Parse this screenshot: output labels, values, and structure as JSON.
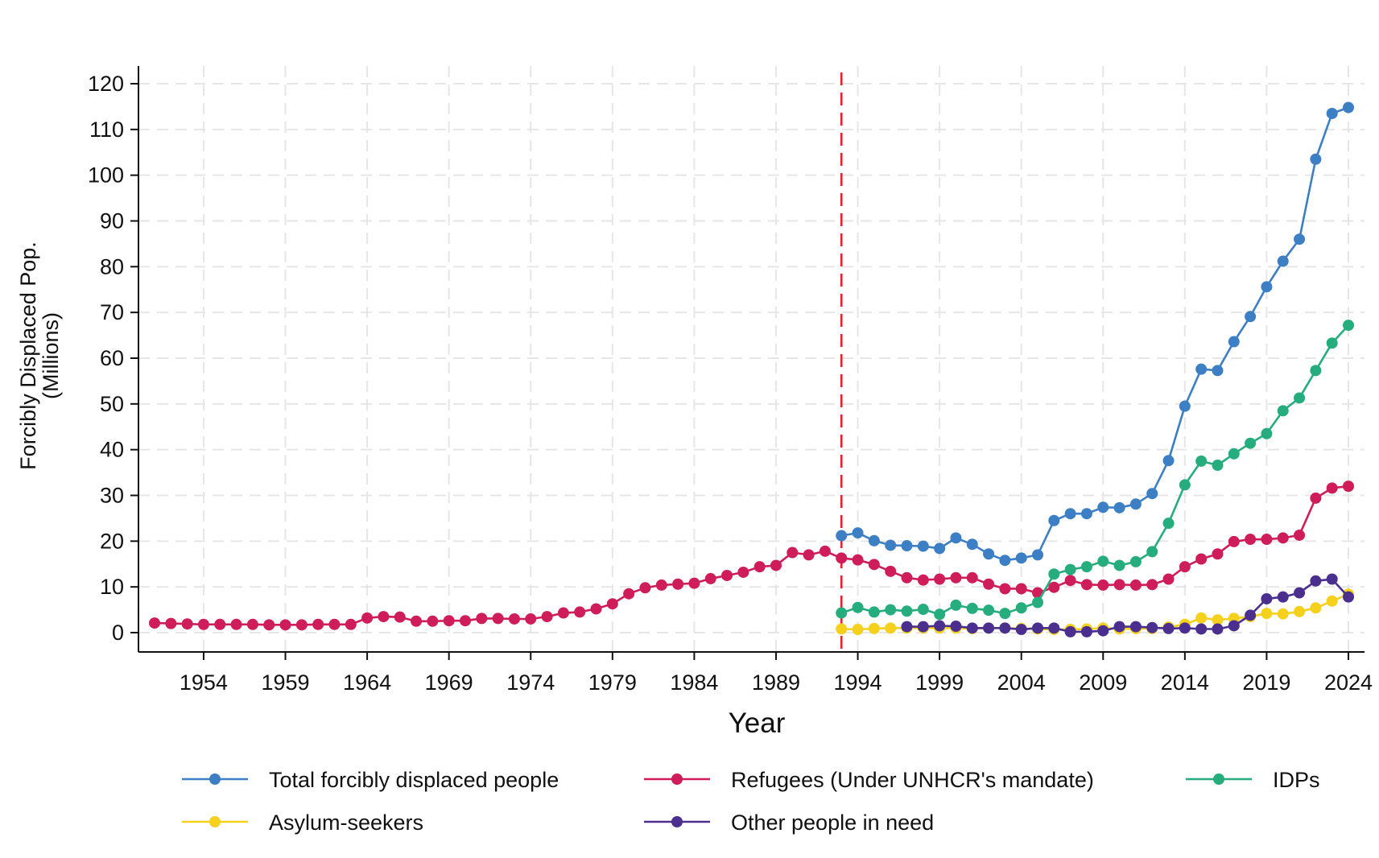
{
  "chart_data": {
    "type": "line",
    "title": "",
    "xlabel": "Year",
    "ylabel": [
      "Forcibly Displaced Pop.",
      "(Millions)"
    ],
    "xlim": [
      1951,
      2024
    ],
    "ylim": [
      0,
      120
    ],
    "xticks": [
      1954,
      1959,
      1964,
      1969,
      1974,
      1979,
      1984,
      1989,
      1994,
      1999,
      2004,
      2009,
      2014,
      2019,
      2024
    ],
    "yticks": [
      0,
      10,
      20,
      30,
      40,
      50,
      60,
      70,
      80,
      90,
      100,
      110,
      120
    ],
    "grid": true,
    "legend_position": "bottom",
    "reference_line": {
      "x": 1993,
      "color": "#e8202a",
      "style": "dashed"
    },
    "series": [
      {
        "name": "Refugees (Under UNHCR's mandate)",
        "color": "#cf1d5a",
        "x": [
          1951,
          1952,
          1953,
          1954,
          1955,
          1956,
          1957,
          1958,
          1959,
          1960,
          1961,
          1962,
          1963,
          1964,
          1965,
          1966,
          1967,
          1968,
          1969,
          1970,
          1971,
          1972,
          1973,
          1974,
          1975,
          1976,
          1977,
          1978,
          1979,
          1980,
          1981,
          1982,
          1983,
          1984,
          1985,
          1986,
          1987,
          1988,
          1989,
          1990,
          1991,
          1992,
          1993,
          1994,
          1995,
          1996,
          1997,
          1998,
          1999,
          2000,
          2001,
          2002,
          2003,
          2004,
          2005,
          2006,
          2007,
          2008,
          2009,
          2010,
          2011,
          2012,
          2013,
          2014,
          2015,
          2016,
          2017,
          2018,
          2019,
          2020,
          2021,
          2022,
          2023,
          2024
        ],
        "values": [
          2.1,
          2.0,
          1.9,
          1.8,
          1.8,
          1.8,
          1.8,
          1.7,
          1.7,
          1.7,
          1.8,
          1.8,
          1.8,
          3.2,
          3.5,
          3.4,
          2.5,
          2.5,
          2.6,
          2.6,
          3.1,
          3.1,
          3.0,
          3.0,
          3.5,
          4.3,
          4.5,
          5.2,
          6.3,
          8.5,
          9.8,
          10.4,
          10.6,
          10.8,
          11.8,
          12.5,
          13.2,
          14.4,
          14.7,
          17.5,
          17.0,
          17.8,
          16.3,
          15.9,
          14.9,
          13.4,
          12.0,
          11.5,
          11.7,
          12.0,
          12.0,
          10.6,
          9.6,
          9.6,
          8.7,
          9.9,
          11.4,
          10.5,
          10.4,
          10.5,
          10.4,
          10.5,
          11.7,
          14.4,
          16.1,
          17.2,
          19.9,
          20.4,
          20.4,
          20.7,
          21.3,
          29.4,
          31.6,
          32.0
        ]
      },
      {
        "name": "Total forcibly displaced people",
        "color": "#3d7fc4",
        "x": [
          1993,
          1994,
          1995,
          1996,
          1997,
          1998,
          1999,
          2000,
          2001,
          2002,
          2003,
          2004,
          2005,
          2006,
          2007,
          2008,
          2009,
          2010,
          2011,
          2012,
          2013,
          2014,
          2015,
          2016,
          2017,
          2018,
          2019,
          2020,
          2021,
          2022,
          2023,
          2024
        ],
        "values": [
          21.2,
          21.8,
          20.1,
          19.1,
          19.0,
          18.9,
          18.4,
          20.7,
          19.3,
          17.2,
          15.8,
          16.3,
          17.0,
          24.5,
          26.0,
          26.0,
          27.4,
          27.3,
          28.1,
          30.4,
          37.6,
          49.5,
          57.6,
          57.3,
          63.6,
          69.1,
          75.6,
          81.2,
          86.0,
          103.5,
          113.5,
          114.8
        ]
      },
      {
        "name": "IDPs",
        "color": "#26ad7e",
        "x": [
          1993,
          1994,
          1995,
          1996,
          1997,
          1998,
          1999,
          2000,
          2001,
          2002,
          2003,
          2004,
          2005,
          2006,
          2007,
          2008,
          2009,
          2010,
          2011,
          2012,
          2013,
          2014,
          2015,
          2016,
          2017,
          2018,
          2019,
          2020,
          2021,
          2022,
          2023,
          2024
        ],
        "values": [
          4.3,
          5.5,
          4.5,
          5.0,
          4.7,
          5.1,
          4.0,
          6.0,
          5.3,
          4.9,
          4.2,
          5.4,
          6.6,
          12.8,
          13.8,
          14.4,
          15.6,
          14.7,
          15.5,
          17.7,
          23.9,
          32.3,
          37.5,
          36.6,
          39.1,
          41.4,
          43.5,
          48.5,
          51.3,
          57.3,
          63.3,
          67.2
        ]
      },
      {
        "name": "Asylum-seekers",
        "color": "#f5d01c",
        "x": [
          1993,
          1994,
          1995,
          1996,
          1997,
          1998,
          1999,
          2000,
          2001,
          2002,
          2003,
          2004,
          2005,
          2006,
          2007,
          2008,
          2009,
          2010,
          2011,
          2012,
          2013,
          2014,
          2015,
          2016,
          2017,
          2018,
          2019,
          2020,
          2021,
          2022,
          2023,
          2024
        ],
        "values": [
          0.8,
          0.7,
          0.9,
          1.0,
          1.0,
          1.0,
          1.0,
          1.0,
          0.9,
          1.0,
          1.0,
          0.9,
          0.8,
          0.7,
          0.7,
          0.8,
          1.0,
          0.8,
          0.9,
          0.9,
          1.2,
          1.8,
          3.2,
          2.8,
          3.1,
          3.5,
          4.2,
          4.1,
          4.6,
          5.4,
          6.9,
          8.4
        ]
      },
      {
        "name": "Other people in need",
        "color": "#4b2f8f",
        "x": [
          1997,
          1998,
          1999,
          2000,
          2001,
          2002,
          2003,
          2004,
          2005,
          2006,
          2007,
          2008,
          2009,
          2010,
          2011,
          2012,
          2013,
          2014,
          2015,
          2016,
          2017,
          2018,
          2019,
          2020,
          2021,
          2022,
          2023,
          2024
        ],
        "values": [
          1.3,
          1.3,
          1.5,
          1.4,
          1.0,
          1.0,
          1.0,
          0.7,
          1.0,
          1.0,
          0.2,
          0.2,
          0.4,
          1.3,
          1.3,
          1.1,
          0.9,
          1.0,
          0.8,
          0.8,
          1.5,
          3.8,
          7.4,
          7.8,
          8.7,
          11.3,
          11.7,
          7.8
        ]
      }
    ],
    "legend": [
      {
        "series": 1,
        "row": 0,
        "col": 0
      },
      {
        "series": 0,
        "row": 0,
        "col": 1
      },
      {
        "series": 2,
        "row": 0,
        "col": 2
      },
      {
        "series": 3,
        "row": 1,
        "col": 0
      },
      {
        "series": 4,
        "row": 1,
        "col": 1
      }
    ]
  }
}
